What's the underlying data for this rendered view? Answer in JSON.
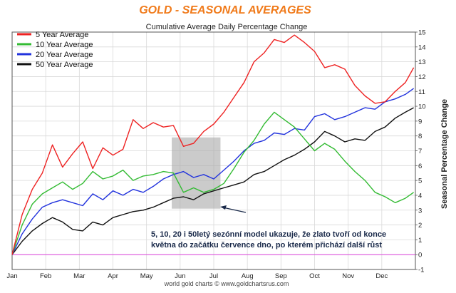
{
  "chart_data": {
    "type": "line",
    "title": "GOLD - SEASONAL AVERAGES",
    "subtitle": "Cumulative Average Daily Percentage Change",
    "ylabel": "Seasonal Percentage Change",
    "xlabel": "",
    "ylim": [
      -1,
      15
    ],
    "yticks": [
      -1,
      0,
      1,
      2,
      3,
      4,
      5,
      6,
      7,
      8,
      9,
      10,
      11,
      12,
      13,
      14,
      15
    ],
    "xlim": [
      0,
      12
    ],
    "month_ticks": [
      "Jan",
      "Feb",
      "Mar",
      "Apr",
      "May",
      "Jun",
      "Jul",
      "Aug",
      "Sep",
      "Oct",
      "Nov",
      "Dec"
    ],
    "grid": true,
    "legend_position": "top-left",
    "series": [
      {
        "name": "50 Year Average",
        "color": "#111111",
        "x": [
          0,
          0.3,
          0.6,
          0.9,
          1.2,
          1.5,
          1.8,
          2.1,
          2.4,
          2.7,
          3.0,
          3.3,
          3.6,
          3.9,
          4.2,
          4.5,
          4.8,
          5.1,
          5.4,
          5.7,
          6.0,
          6.3,
          6.6,
          6.9,
          7.2,
          7.5,
          7.8,
          8.1,
          8.4,
          8.7,
          9.0,
          9.3,
          9.6,
          9.9,
          10.2,
          10.5,
          10.8,
          11.1,
          11.4,
          11.7,
          11.95
        ],
        "values": [
          0,
          0.9,
          1.6,
          2.1,
          2.5,
          2.2,
          1.7,
          1.6,
          2.2,
          2.0,
          2.5,
          2.7,
          2.9,
          3.0,
          3.2,
          3.5,
          3.8,
          3.9,
          3.7,
          4.1,
          4.3,
          4.5,
          4.7,
          4.9,
          5.4,
          5.6,
          6.0,
          6.4,
          6.7,
          7.1,
          7.6,
          8.3,
          8.0,
          7.6,
          7.8,
          7.7,
          8.3,
          8.6,
          9.2,
          9.6,
          9.9
        ]
      },
      {
        "name": "20 Year Average",
        "color": "#2233dd",
        "x": [
          0,
          0.3,
          0.6,
          0.9,
          1.2,
          1.5,
          1.8,
          2.1,
          2.4,
          2.7,
          3.0,
          3.3,
          3.6,
          3.9,
          4.2,
          4.5,
          4.8,
          5.1,
          5.4,
          5.7,
          6.0,
          6.3,
          6.6,
          6.9,
          7.2,
          7.5,
          7.8,
          8.1,
          8.4,
          8.7,
          9.0,
          9.3,
          9.6,
          9.9,
          10.2,
          10.5,
          10.8,
          11.1,
          11.4,
          11.7,
          11.95
        ],
        "values": [
          0,
          1.4,
          2.4,
          3.2,
          3.5,
          3.7,
          3.5,
          3.3,
          4.1,
          3.7,
          4.3,
          4.0,
          4.4,
          4.2,
          4.6,
          5.1,
          5.4,
          5.6,
          5.2,
          5.4,
          5.1,
          5.7,
          6.3,
          7.0,
          7.5,
          7.7,
          8.2,
          8.1,
          8.5,
          8.4,
          9.3,
          9.5,
          9.1,
          9.3,
          9.6,
          9.9,
          9.8,
          10.3,
          10.5,
          10.8,
          11.2
        ]
      },
      {
        "name": "10 Year Average",
        "color": "#33bb33",
        "x": [
          0,
          0.3,
          0.6,
          0.9,
          1.2,
          1.5,
          1.8,
          2.1,
          2.4,
          2.7,
          3.0,
          3.3,
          3.6,
          3.9,
          4.2,
          4.5,
          4.8,
          5.1,
          5.4,
          5.7,
          6.0,
          6.3,
          6.6,
          6.9,
          7.2,
          7.5,
          7.8,
          8.1,
          8.4,
          8.7,
          9.0,
          9.3,
          9.6,
          9.9,
          10.2,
          10.5,
          10.8,
          11.1,
          11.4,
          11.7,
          11.95
        ],
        "values": [
          0,
          2.0,
          3.4,
          4.1,
          4.5,
          4.9,
          4.4,
          4.8,
          5.6,
          5.1,
          5.3,
          5.7,
          5.0,
          5.3,
          5.4,
          5.6,
          5.5,
          4.2,
          4.5,
          4.2,
          4.4,
          4.8,
          5.8,
          6.9,
          7.7,
          8.8,
          9.6,
          9.1,
          8.6,
          7.8,
          7.0,
          7.5,
          7.1,
          6.3,
          5.6,
          5.0,
          4.2,
          3.9,
          3.5,
          3.8,
          4.2
        ]
      },
      {
        "name": "5 Year Average",
        "color": "#ee2222",
        "x": [
          0,
          0.3,
          0.6,
          0.9,
          1.2,
          1.5,
          1.8,
          2.1,
          2.4,
          2.7,
          3.0,
          3.3,
          3.6,
          3.9,
          4.2,
          4.5,
          4.8,
          5.1,
          5.4,
          5.7,
          6.0,
          6.3,
          6.6,
          6.9,
          7.2,
          7.5,
          7.8,
          8.1,
          8.4,
          8.7,
          9.0,
          9.3,
          9.6,
          9.9,
          10.2,
          10.5,
          10.8,
          11.1,
          11.4,
          11.7,
          11.95
        ],
        "values": [
          0,
          2.7,
          4.4,
          5.5,
          7.4,
          5.9,
          6.8,
          7.6,
          5.8,
          7.2,
          6.7,
          7.1,
          9.1,
          8.5,
          8.9,
          8.6,
          8.7,
          7.3,
          7.5,
          8.3,
          8.8,
          9.6,
          10.6,
          11.6,
          13.0,
          13.6,
          14.5,
          14.3,
          14.8,
          14.3,
          13.7,
          12.6,
          12.8,
          12.5,
          11.4,
          10.7,
          10.2,
          10.3,
          11.0,
          11.6,
          12.6
        ]
      }
    ],
    "annotations": [
      {
        "text": "5, 10, 20 i 50letý sezónní model ukazuje, že zlato tvoří od konce"
      },
      {
        "text": "května do začátku července dno, po kterém přichází další růst"
      }
    ],
    "highlight_region": {
      "x_start": 4.75,
      "x_end": 6.2,
      "y_start": 3.1,
      "y_end": 7.9
    },
    "reference_line": {
      "y": 0,
      "color": "#dd44dd"
    },
    "footer": "world gold charts © www.goldchartsrus.com"
  }
}
